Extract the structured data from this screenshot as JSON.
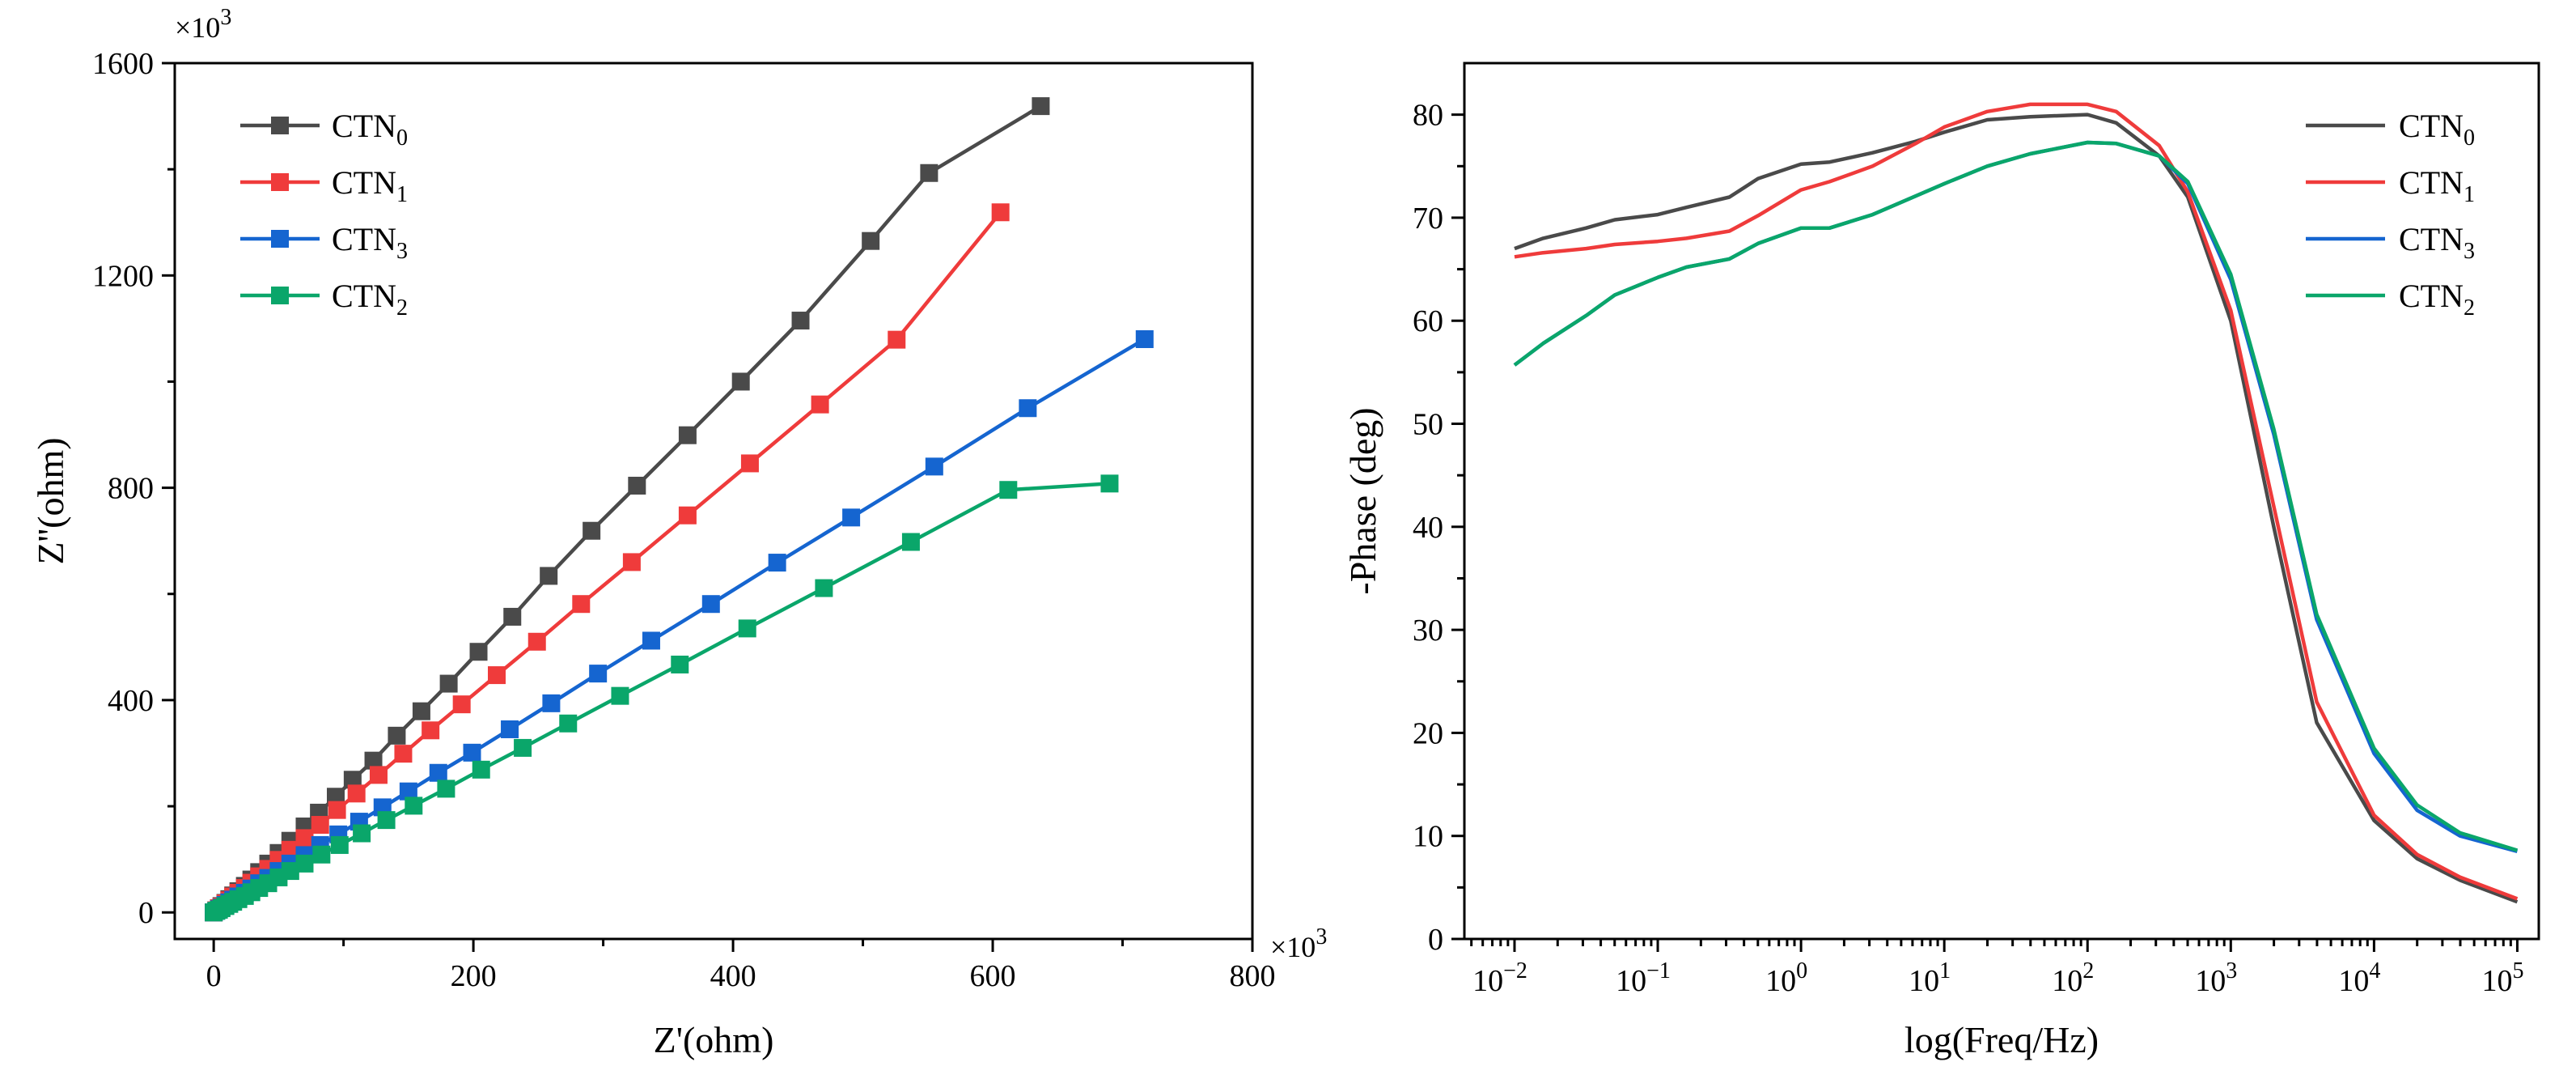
{
  "colors": {
    "CTN0": "#4a4a4a",
    "CTN1": "#ef3b3b",
    "CTN3": "#1565d0",
    "CTN2": "#0aa66a",
    "axis": "#000000"
  },
  "chart_data": [
    {
      "type": "scatter",
      "title": "",
      "xlabel": "Z'(ohm)",
      "ylabel": "Z''(ohm)",
      "x_multiplier": "×10",
      "x_multiplier_exp": "3",
      "y_multiplier": "×10",
      "y_multiplier_exp": "3",
      "xlim": [
        -30,
        800
      ],
      "ylim": [
        -50,
        1600
      ],
      "x_ticks": [
        "0",
        "200",
        "400",
        "600",
        "800"
      ],
      "y_ticks": [
        "0",
        "400",
        "800",
        "1200",
        "1600"
      ],
      "legend_position": "top-left",
      "series": [
        {
          "key": "CTN0",
          "name": "CTN",
          "sub": "0",
          "color": "#4a4a4a",
          "points": [
            [
              0,
              0
            ],
            [
              2,
              4
            ],
            [
              4,
              8
            ],
            [
              6,
              12
            ],
            [
              9,
              18
            ],
            [
              12,
              25
            ],
            [
              15,
              32
            ],
            [
              19,
              40
            ],
            [
              24,
              50
            ],
            [
              29,
              62
            ],
            [
              35,
              76
            ],
            [
              42,
              92
            ],
            [
              50,
              112
            ],
            [
              59,
              135
            ],
            [
              70,
              162
            ],
            [
              81,
              188
            ],
            [
              94,
              218
            ],
            [
              107,
              250
            ],
            [
              123,
              286
            ],
            [
              141,
              333
            ],
            [
              160,
              379
            ],
            [
              181,
              431
            ],
            [
              204,
              491
            ],
            [
              230,
              557
            ],
            [
              258,
              634
            ],
            [
              291,
              719
            ],
            [
              326,
              804
            ],
            [
              365,
              899
            ],
            [
              406,
              1000
            ],
            [
              452,
              1115
            ],
            [
              506,
              1265
            ],
            [
              551,
              1393
            ],
            [
              637,
              1519
            ]
          ]
        },
        {
          "key": "CTN1",
          "name": "CTN",
          "sub": "1",
          "color": "#ef3b3b",
          "points": [
            [
              0,
              0
            ],
            [
              2,
              4
            ],
            [
              4,
              8
            ],
            [
              6,
              11
            ],
            [
              9,
              17
            ],
            [
              12,
              23
            ],
            [
              15,
              30
            ],
            [
              19,
              37
            ],
            [
              24,
              46
            ],
            [
              29,
              56
            ],
            [
              35,
              68
            ],
            [
              42,
              82
            ],
            [
              50,
              99
            ],
            [
              59,
              118
            ],
            [
              70,
              140
            ],
            [
              82,
              165
            ],
            [
              95,
              193
            ],
            [
              110,
              224
            ],
            [
              127,
              259
            ],
            [
              146,
              299
            ],
            [
              167,
              343
            ],
            [
              191,
              392
            ],
            [
              218,
              447
            ],
            [
              249,
              510
            ],
            [
              283,
              581
            ],
            [
              322,
              660
            ],
            [
              365,
              748
            ],
            [
              413,
              846
            ],
            [
              467,
              957
            ],
            [
              526,
              1079
            ],
            [
              606,
              1319
            ]
          ]
        },
        {
          "key": "CTN3",
          "name": "CTN",
          "sub": "3",
          "color": "#1565d0",
          "points": [
            [
              0,
              0
            ],
            [
              2,
              3
            ],
            [
              4,
              6
            ],
            [
              6,
              9
            ],
            [
              9,
              14
            ],
            [
              12,
              19
            ],
            [
              15,
              24
            ],
            [
              19,
              30
            ],
            [
              24,
              37
            ],
            [
              29,
              45
            ],
            [
              35,
              55
            ],
            [
              42,
              65
            ],
            [
              50,
              78
            ],
            [
              59,
              92
            ],
            [
              70,
              108
            ],
            [
              82,
              127
            ],
            [
              96,
              147
            ],
            [
              112,
              171
            ],
            [
              130,
              198
            ],
            [
              150,
              228
            ],
            [
              173,
              263
            ],
            [
              199,
              301
            ],
            [
              228,
              345
            ],
            [
              260,
              394
            ],
            [
              296,
              450
            ],
            [
              337,
              512
            ],
            [
              383,
              581
            ],
            [
              434,
              659
            ],
            [
              491,
              744
            ],
            [
              555,
              840
            ],
            [
              627,
              950
            ],
            [
              717,
              1080
            ]
          ]
        },
        {
          "key": "CTN2",
          "name": "CTN",
          "sub": "2",
          "color": "#0aa66a",
          "points": [
            [
              0,
              0
            ],
            [
              2,
              3
            ],
            [
              4,
              5
            ],
            [
              6,
              8
            ],
            [
              9,
              12
            ],
            [
              12,
              16
            ],
            [
              15,
              20
            ],
            [
              19,
              25
            ],
            [
              24,
              31
            ],
            [
              29,
              38
            ],
            [
              35,
              46
            ],
            [
              42,
              55
            ],
            [
              50,
              66
            ],
            [
              59,
              78
            ],
            [
              70,
              92
            ],
            [
              83,
              109
            ],
            [
              97,
              127
            ],
            [
              114,
              149
            ],
            [
              133,
              174
            ],
            [
              154,
              201
            ],
            [
              179,
              233
            ],
            [
              206,
              269
            ],
            [
              238,
              310
            ],
            [
              273,
              356
            ],
            [
              313,
              408
            ],
            [
              359,
              467
            ],
            [
              411,
              535
            ],
            [
              470,
              611
            ],
            [
              537,
              698
            ],
            [
              612,
              796
            ],
            [
              690,
              808
            ]
          ]
        }
      ]
    },
    {
      "type": "line",
      "title": "",
      "xlabel": "log(Freq/Hz)",
      "ylabel": "-Phase (deg)",
      "xscale": "log",
      "xlim_log10": [
        -2.35,
        5.15
      ],
      "ylim": [
        0,
        85
      ],
      "x_ticks": [
        {
          "base": "10",
          "exp": "−2",
          "v": -2
        },
        {
          "base": "10",
          "exp": "−1",
          "v": -1
        },
        {
          "base": "10",
          "exp": "0",
          "v": 0
        },
        {
          "base": "10",
          "exp": "1",
          "v": 1
        },
        {
          "base": "10",
          "exp": "2",
          "v": 2
        },
        {
          "base": "10",
          "exp": "3",
          "v": 3
        },
        {
          "base": "10",
          "exp": "4",
          "v": 4
        },
        {
          "base": "10",
          "exp": "5",
          "v": 5
        }
      ],
      "y_ticks": [
        "0",
        "10",
        "20",
        "30",
        "40",
        "50",
        "60",
        "70",
        "80"
      ],
      "legend_position": "top-right",
      "series": [
        {
          "key": "CTN0",
          "name": "CTN",
          "sub": "0",
          "color": "#4a4a4a",
          "log_freq": [
            -2,
            -1.8,
            -1.5,
            -1.3,
            -1,
            -0.8,
            -0.5,
            -0.3,
            0,
            0.2,
            0.5,
            0.8,
            1,
            1.3,
            1.6,
            2,
            2.2,
            2.5,
            2.7,
            3,
            3.3,
            3.6,
            4,
            4.3,
            4.6,
            5
          ],
          "phase": [
            67,
            68,
            69,
            69.8,
            70.3,
            71,
            72,
            73.8,
            75.2,
            75.4,
            76.3,
            77.4,
            78.3,
            79.5,
            79.8,
            80,
            79.2,
            76,
            72,
            60,
            40,
            21,
            11.5,
            7.8,
            5.7,
            3.6
          ]
        },
        {
          "key": "CTN1",
          "name": "CTN",
          "sub": "1",
          "color": "#ef3b3b",
          "log_freq": [
            -2,
            -1.8,
            -1.5,
            -1.3,
            -1,
            -0.8,
            -0.5,
            -0.3,
            0,
            0.2,
            0.5,
            0.8,
            1,
            1.3,
            1.6,
            2,
            2.2,
            2.5,
            2.7,
            3,
            3.3,
            3.6,
            4,
            4.3,
            4.6,
            5
          ],
          "phase": [
            66.2,
            66.6,
            67,
            67.4,
            67.7,
            68,
            68.7,
            70.2,
            72.7,
            73.5,
            75,
            77.2,
            78.8,
            80.3,
            81,
            81,
            80.3,
            77,
            72.5,
            61,
            42,
            23,
            12,
            8.2,
            6,
            3.9
          ]
        },
        {
          "key": "CTN3",
          "name": "CTN",
          "sub": "3",
          "color": "#1565d0",
          "log_freq": [
            -2,
            -1.8,
            -1.5,
            -1.3,
            -1,
            -0.8,
            -0.5,
            -0.3,
            0,
            0.2,
            0.5,
            0.8,
            1,
            1.3,
            1.6,
            2,
            2.2,
            2.5,
            2.7,
            3,
            3.3,
            3.6,
            4,
            4.3,
            4.6,
            5
          ],
          "phase": [
            55.7,
            57.8,
            60.5,
            62.5,
            64.2,
            65.2,
            66,
            67.5,
            69,
            69,
            70.3,
            72.1,
            73.3,
            75,
            76.2,
            77.3,
            77.2,
            76,
            73.3,
            64,
            49,
            31,
            18,
            12.5,
            10,
            8.5
          ]
        },
        {
          "key": "CTN2",
          "name": "CTN",
          "sub": "2",
          "color": "#0aa66a",
          "log_freq": [
            -2,
            -1.8,
            -1.5,
            -1.3,
            -1,
            -0.8,
            -0.5,
            -0.3,
            0,
            0.2,
            0.5,
            0.8,
            1,
            1.3,
            1.6,
            2,
            2.2,
            2.5,
            2.7,
            3,
            3.3,
            3.6,
            4,
            4.3,
            4.6,
            5
          ],
          "phase": [
            55.7,
            57.8,
            60.5,
            62.5,
            64.2,
            65.2,
            66,
            67.5,
            69,
            69,
            70.3,
            72.1,
            73.3,
            75,
            76.2,
            77.3,
            77.2,
            76,
            73.5,
            64.5,
            49.5,
            31.5,
            18.5,
            13,
            10.3,
            8.6
          ]
        }
      ]
    }
  ]
}
